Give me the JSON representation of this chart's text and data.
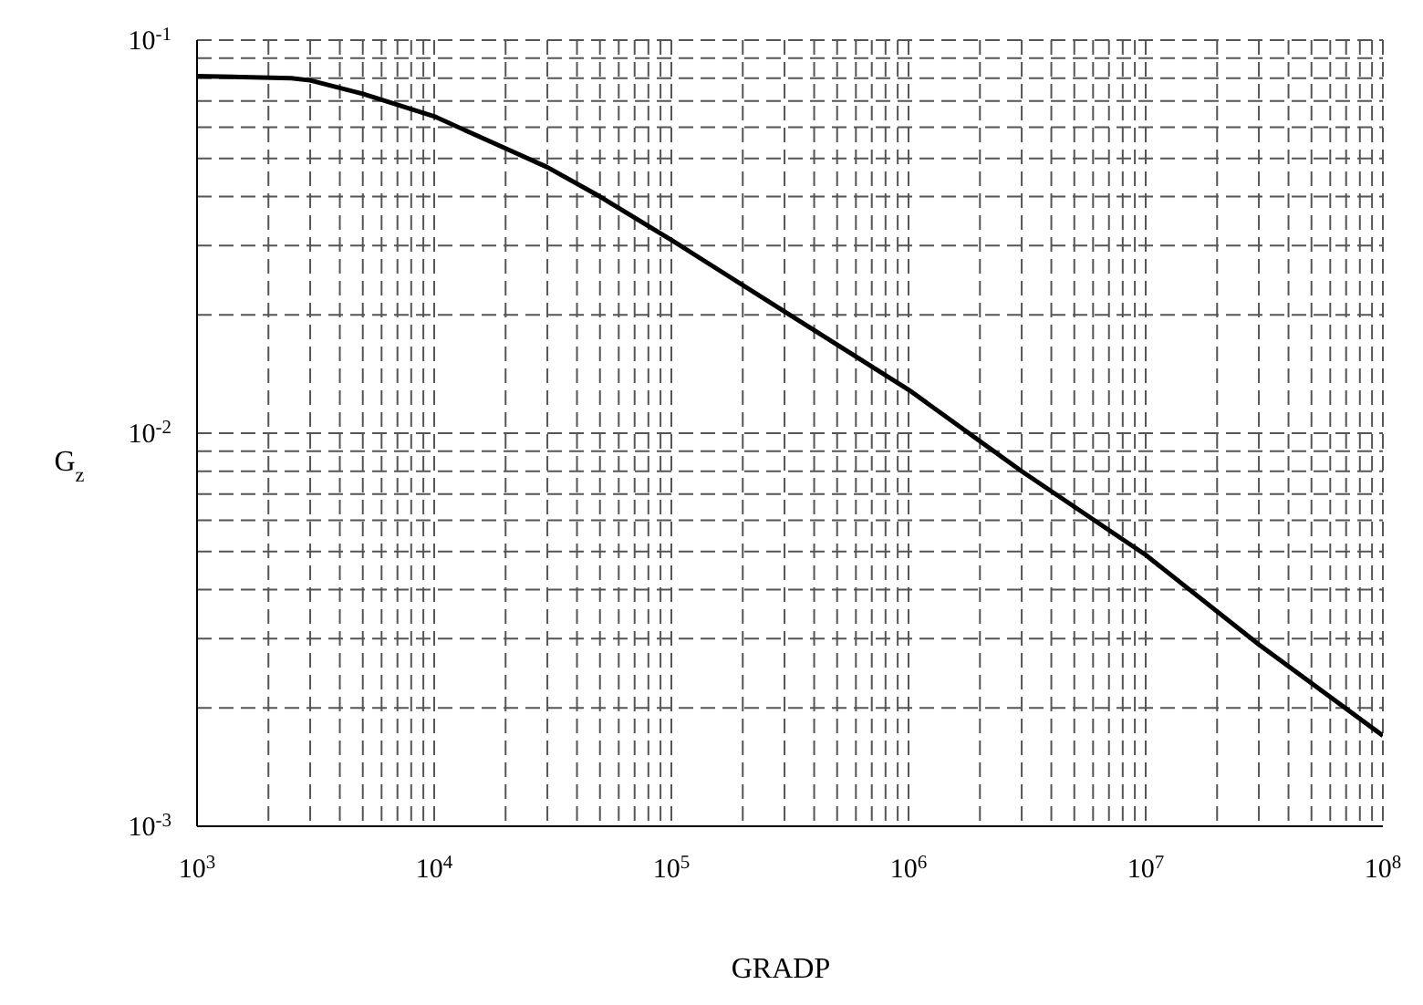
{
  "chart_data": {
    "type": "line",
    "xlabel": "GRADP",
    "ylabel": "G$_{z}$",
    "x": [
      1000,
      2500,
      3000,
      5000,
      10000,
      20000,
      30000,
      50000,
      100000,
      300000,
      1000000,
      3000000,
      10000000,
      30000000,
      100000000
    ],
    "series": [
      {
        "color": "#000000",
        "values": [
          0.081,
          0.08,
          0.079,
          0.073,
          0.064,
          0.053,
          0.0475,
          0.04,
          0.031,
          0.0204,
          0.0129,
          0.008,
          0.0049,
          0.0029,
          0.0017
        ]
      }
    ],
    "log": "xy",
    "grid": true,
    "line_style": "solid",
    "marker": "none",
    "xlim": [
      1000,
      100000000
    ],
    "xticks": [
      {
        "value": 1000,
        "label": "10$^{3}$"
      },
      {
        "value": 2000,
        "label": null
      },
      {
        "value": 3000,
        "label": null
      },
      {
        "value": 4000,
        "label": null
      },
      {
        "value": 5000,
        "label": null
      },
      {
        "value": 6000,
        "label": null
      },
      {
        "value": 7000,
        "label": null
      },
      {
        "value": 8000,
        "label": null
      },
      {
        "value": 9000,
        "label": null
      },
      {
        "value": 10000,
        "label": "10$^{4}$"
      },
      {
        "value": 20000,
        "label": null
      },
      {
        "value": 30000,
        "label": null
      },
      {
        "value": 40000,
        "label": null
      },
      {
        "value": 50000,
        "label": null
      },
      {
        "value": 60000,
        "label": null
      },
      {
        "value": 70000,
        "label": null
      },
      {
        "value": 80000,
        "label": null
      },
      {
        "value": 90000,
        "label": null
      },
      {
        "value": 100000,
        "label": "10$^{5}$"
      },
      {
        "value": 200000,
        "label": null
      },
      {
        "value": 300000,
        "label": null
      },
      {
        "value": 400000,
        "label": null
      },
      {
        "value": 500000,
        "label": null
      },
      {
        "value": 600000,
        "label": null
      },
      {
        "value": 700000,
        "label": null
      },
      {
        "value": 800000,
        "label": null
      },
      {
        "value": 900000,
        "label": null
      },
      {
        "value": 1000000,
        "label": "10$^{6}$"
      },
      {
        "value": 2000000,
        "label": null
      },
      {
        "value": 3000000,
        "label": null
      },
      {
        "value": 4000000,
        "label": null
      },
      {
        "value": 5000000,
        "label": null
      },
      {
        "value": 6000000,
        "label": null
      },
      {
        "value": 7000000,
        "label": null
      },
      {
        "value": 8000000,
        "label": null
      },
      {
        "value": 9000000,
        "label": null
      },
      {
        "value": 10000000,
        "label": "10$^{7}$"
      },
      {
        "value": 20000000,
        "label": null
      },
      {
        "value": 30000000,
        "label": null
      },
      {
        "value": 40000000,
        "label": null
      },
      {
        "value": 50000000,
        "label": null
      },
      {
        "value": 60000000,
        "label": null
      },
      {
        "value": 70000000,
        "label": null
      },
      {
        "value": 80000000,
        "label": null
      },
      {
        "value": 90000000,
        "label": null
      },
      {
        "value": 100000000,
        "label": "10$^{8}$"
      }
    ],
    "ylim": [
      0.001,
      0.1
    ],
    "yticks": [
      {
        "value": 0.001,
        "label": "10$^{-3}$"
      },
      {
        "value": 0.002,
        "label": null
      },
      {
        "value": 0.003,
        "label": null
      },
      {
        "value": 0.004,
        "label": null
      },
      {
        "value": 0.005,
        "label": null
      },
      {
        "value": 0.006,
        "label": null
      },
      {
        "value": 0.007,
        "label": null
      },
      {
        "value": 0.008,
        "label": null
      },
      {
        "value": 0.009,
        "label": null
      },
      {
        "value": 0.01,
        "label": "10$^{-2}$"
      },
      {
        "value": 0.02,
        "label": null
      },
      {
        "value": 0.03,
        "label": null
      },
      {
        "value": 0.04,
        "label": null
      },
      {
        "value": 0.05,
        "label": null
      },
      {
        "value": 0.06,
        "label": null
      },
      {
        "value": 0.07,
        "label": null
      },
      {
        "value": 0.08,
        "label": null
      },
      {
        "value": 0.09,
        "label": null
      },
      {
        "value": 0.1,
        "label": "10$^{-1}$"
      }
    ]
  }
}
